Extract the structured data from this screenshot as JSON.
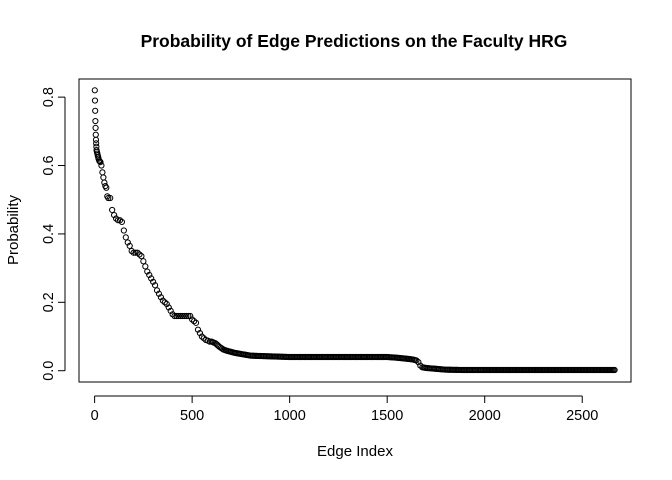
{
  "chart_data": {
    "type": "scatter",
    "title": "Probability of Edge Predictions on the Faculty HRG",
    "xlabel": "Edge Index",
    "ylabel": "Probability",
    "xlim": [
      -80,
      2750
    ],
    "ylim": [
      -0.033,
      0.853
    ],
    "x_ticks": [
      0,
      500,
      1000,
      1500,
      2000,
      2500
    ],
    "x_tick_labels": [
      "0",
      "500",
      "1000",
      "1500",
      "2000",
      "2500"
    ],
    "y_ticks": [
      0.0,
      0.2,
      0.4,
      0.6,
      0.8
    ],
    "y_tick_labels": [
      "0.0",
      "0.2",
      "0.4",
      "0.6",
      "0.8"
    ],
    "grid": false,
    "legend": "none",
    "marker": "open-circle",
    "n_points": 2666,
    "x_max": 2666,
    "series": [
      {
        "x": [
          1,
          2,
          3,
          4,
          5,
          6,
          7,
          8,
          9,
          10,
          12,
          14,
          16,
          18,
          20,
          23,
          26,
          30,
          35,
          40,
          45,
          50,
          55,
          60,
          65,
          70,
          80,
          90,
          100,
          110,
          120,
          130,
          140,
          150,
          160,
          170,
          180,
          190,
          200,
          210,
          220,
          230,
          240,
          250,
          260,
          270,
          280,
          290,
          300,
          310,
          320,
          330,
          340,
          350,
          360,
          370,
          380,
          390,
          400,
          410,
          420,
          430,
          440,
          450,
          460,
          470,
          480,
          490,
          500,
          510,
          520,
          530,
          540,
          550,
          560,
          570,
          580,
          590,
          600,
          620,
          640,
          660,
          680,
          700,
          720,
          740,
          760,
          780,
          800,
          850,
          900,
          950,
          1000,
          1100,
          1200,
          1300,
          1400,
          1500,
          1550,
          1600,
          1630,
          1650,
          1660,
          1670,
          1680,
          1700,
          1720,
          1740,
          1760,
          1780,
          1800,
          1900,
          2000,
          2200,
          2400,
          2600,
          2666
        ],
        "values": [
          0.82,
          0.79,
          0.76,
          0.73,
          0.71,
          0.69,
          0.675,
          0.665,
          0.655,
          0.645,
          0.64,
          0.635,
          0.63,
          0.625,
          0.62,
          0.615,
          0.612,
          0.61,
          0.6,
          0.58,
          0.565,
          0.55,
          0.54,
          0.535,
          0.51,
          0.505,
          0.505,
          0.47,
          0.455,
          0.445,
          0.44,
          0.44,
          0.435,
          0.41,
          0.39,
          0.375,
          0.365,
          0.35,
          0.345,
          0.345,
          0.345,
          0.34,
          0.335,
          0.32,
          0.305,
          0.29,
          0.28,
          0.27,
          0.26,
          0.25,
          0.235,
          0.225,
          0.215,
          0.205,
          0.2,
          0.195,
          0.185,
          0.175,
          0.165,
          0.16,
          0.16,
          0.16,
          0.16,
          0.16,
          0.16,
          0.16,
          0.16,
          0.16,
          0.15,
          0.145,
          0.14,
          0.12,
          0.11,
          0.1,
          0.095,
          0.09,
          0.088,
          0.085,
          0.085,
          0.08,
          0.07,
          0.062,
          0.058,
          0.055,
          0.052,
          0.05,
          0.048,
          0.046,
          0.044,
          0.043,
          0.042,
          0.041,
          0.04,
          0.04,
          0.04,
          0.04,
          0.04,
          0.04,
          0.038,
          0.035,
          0.033,
          0.03,
          0.025,
          0.015,
          0.01,
          0.008,
          0.007,
          0.006,
          0.005,
          0.004,
          0.003,
          0.002,
          0.002,
          0.002,
          0.002,
          0.002,
          0.002
        ]
      }
    ]
  }
}
